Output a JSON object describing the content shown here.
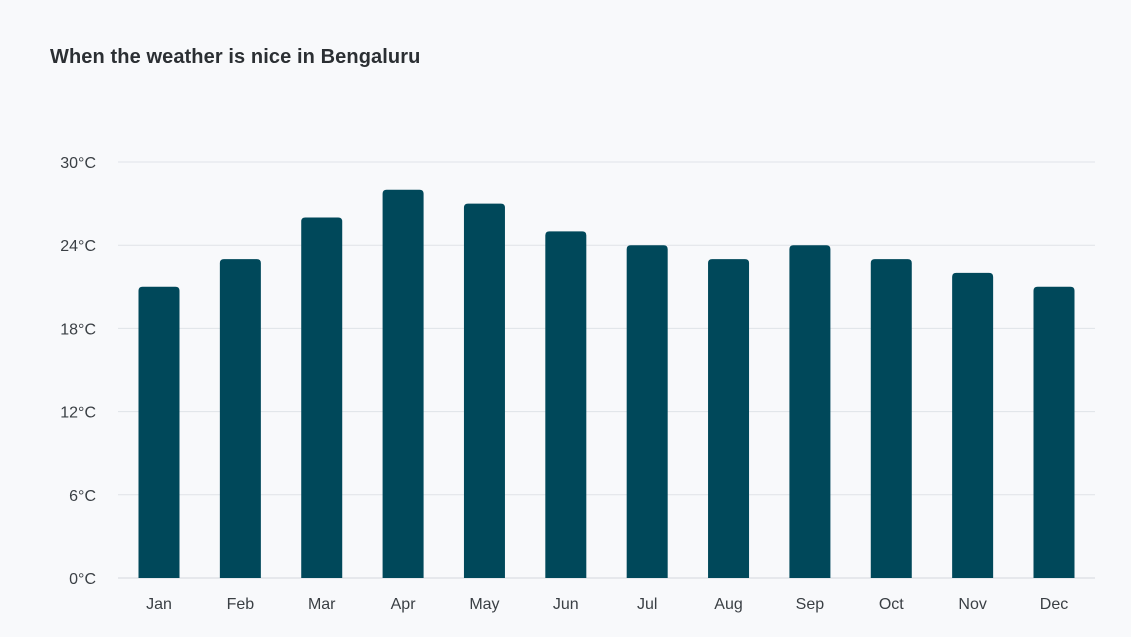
{
  "chart_data": {
    "type": "bar",
    "title": "When the weather is nice in Bengaluru",
    "categories": [
      "Jan",
      "Feb",
      "Mar",
      "Apr",
      "May",
      "Jun",
      "Jul",
      "Aug",
      "Sep",
      "Oct",
      "Nov",
      "Dec"
    ],
    "values": [
      21,
      23,
      26,
      28,
      27,
      25,
      24,
      23,
      24,
      23,
      22,
      21
    ],
    "yticks": [
      "0°C",
      "6°C",
      "12°C",
      "18°C",
      "24°C",
      "30°C"
    ],
    "ytick_values": [
      0,
      6,
      12,
      18,
      24,
      30
    ],
    "ylim": [
      0,
      30
    ],
    "xlabel": "",
    "ylabel": "",
    "grid": true,
    "bar_color": "#00485a",
    "grid_color": "#dfe3e8"
  }
}
